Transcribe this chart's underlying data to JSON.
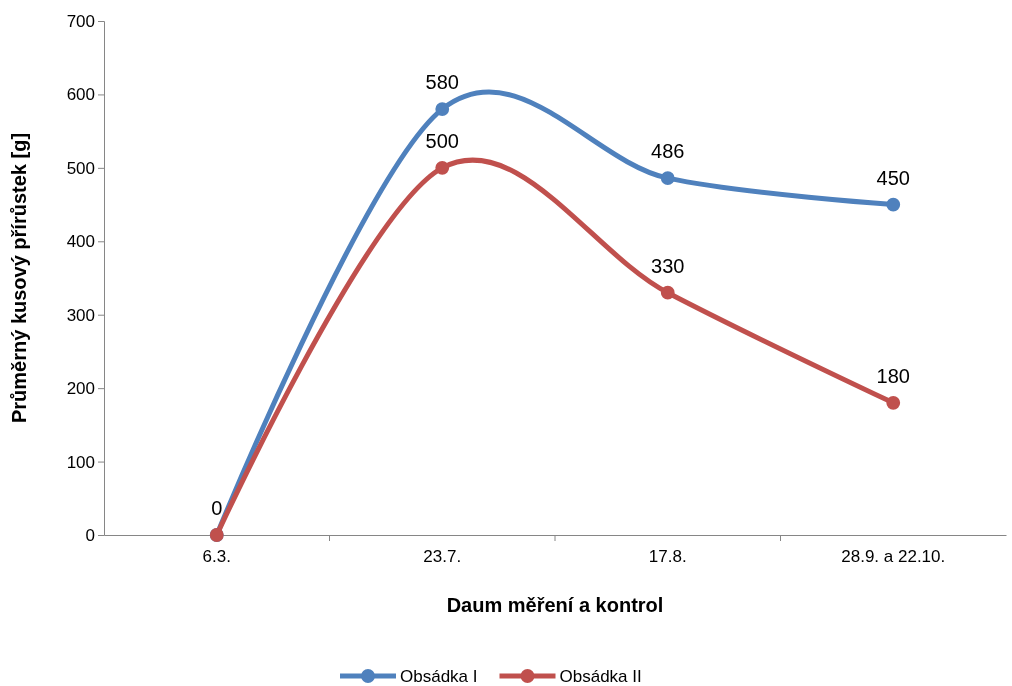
{
  "chart_data": {
    "type": "line",
    "xlabel": "Daum měření a kontrol",
    "ylabel": "Průměrný kusový přírůstek [g]",
    "categories": [
      "6.3.",
      "23.7.",
      "17.8.",
      "28.9. a 22.10."
    ],
    "series": [
      {
        "name": "Obsádka I",
        "color": "#4f81bd",
        "values": [
          0,
          580,
          486,
          450
        ],
        "value_labels": [
          "0",
          "580",
          "486",
          "450"
        ]
      },
      {
        "name": "Obsádka II",
        "color": "#c0504d",
        "values": [
          0,
          500,
          330,
          180
        ],
        "value_labels": [
          null,
          "500",
          "330",
          "180"
        ]
      }
    ],
    "ylim": [
      0,
      700
    ],
    "yticks": [
      0,
      100,
      200,
      300,
      400,
      500,
      600,
      700
    ],
    "grid": false,
    "legend": "bottom",
    "marker": "circle",
    "line_style": "solid"
  }
}
